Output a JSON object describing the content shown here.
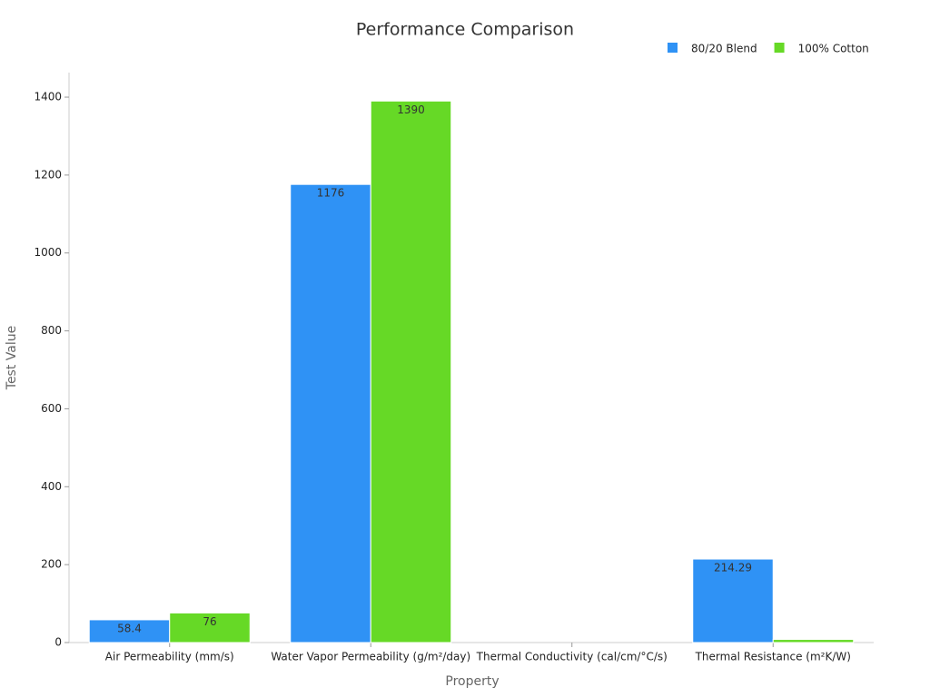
{
  "chart_data": {
    "type": "bar",
    "title": "Performance Comparison",
    "x_label": "Property",
    "y_label": "Test Value",
    "categories": [
      "Air Permeability (mm/s)",
      "Water Vapor Permeability (g/m²/day)",
      "Thermal Conductivity (cal/cm/°C/s)",
      "Thermal Resistance (m²K/W)"
    ],
    "series": [
      {
        "name": "80/20 Blend",
        "color": "#2f92f5",
        "values": [
          58.4,
          1176,
          0,
          214.29
        ]
      },
      {
        "name": "100% Cotton",
        "color": "#66d926",
        "values": [
          76,
          1390,
          0,
          8
        ]
      }
    ],
    "ylim": [
      0,
      1463
    ],
    "yticks": [
      0,
      200,
      400,
      600,
      800,
      1000,
      1200,
      1400
    ],
    "grid": false,
    "legend": "top-right"
  }
}
